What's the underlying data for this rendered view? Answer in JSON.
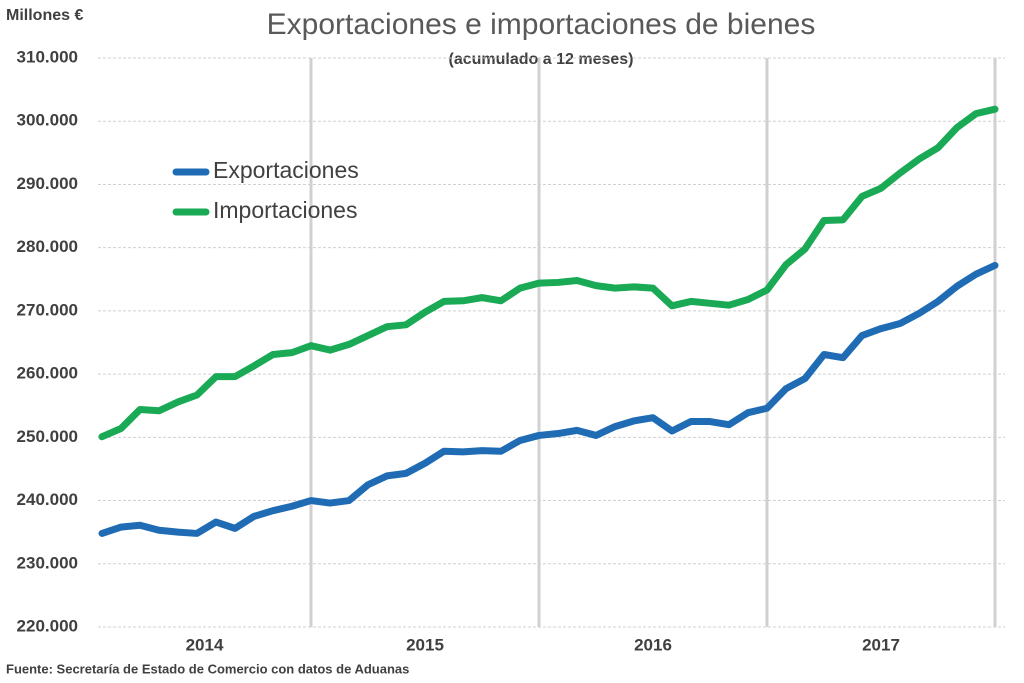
{
  "chart_data": {
    "type": "line",
    "title": "Exportaciones e importaciones de bienes",
    "subtitle": "(acumulado  a 12 meses)",
    "y_axis_label": "Millones €",
    "source": "Fuente: Secretaría de Estado de Comercio con datos de Aduanas",
    "categories": [
      "2014",
      null,
      null,
      null,
      null,
      null,
      null,
      null,
      null,
      null,
      null,
      null,
      "2015",
      null,
      null,
      null,
      null,
      null,
      null,
      null,
      null,
      null,
      null,
      null,
      "2016",
      null,
      null,
      null,
      null,
      null,
      null,
      null,
      null,
      null,
      null,
      null,
      "2017",
      null,
      null,
      null,
      null,
      null,
      null,
      null,
      null,
      null,
      null,
      null
    ],
    "series": [
      {
        "name": "Exportaciones",
        "color": "#1f6cb5",
        "values": [
          234800,
          235800,
          236100,
          235300,
          235000,
          234800,
          236600,
          235600,
          237500,
          238400,
          239100,
          240000,
          239600,
          240000,
          242500,
          243900,
          244300,
          245900,
          247800,
          247700,
          247900,
          247800,
          249500,
          250300,
          250600,
          251100,
          250300,
          251700,
          252600,
          253100,
          251000,
          252500,
          252500,
          252000,
          253900,
          254600,
          257700,
          259300,
          263100,
          262600,
          266100,
          267200,
          268000,
          269600,
          271500,
          273900,
          275800,
          277200
        ]
      },
      {
        "name": "Importaciones",
        "color": "#1aaa55",
        "values": [
          250100,
          251400,
          254400,
          254200,
          255600,
          256700,
          259600,
          259600,
          261300,
          263100,
          263400,
          264500,
          263800,
          264700,
          266100,
          267500,
          267800,
          269800,
          271500,
          271600,
          272100,
          271600,
          273600,
          274400,
          274500,
          274800,
          274000,
          273600,
          273800,
          273600,
          270800,
          271500,
          271200,
          270900,
          271800,
          273300,
          277300,
          279800,
          284300,
          284400,
          288100,
          289400,
          291800,
          294000,
          295800,
          299000,
          301200,
          301900
        ]
      }
    ],
    "ylim": [
      220000,
      310000
    ],
    "yticks": [
      {
        "value": 220000,
        "label": "220.000"
      },
      {
        "value": 230000,
        "label": "230.000"
      },
      {
        "value": 240000,
        "label": "240.000"
      },
      {
        "value": 250000,
        "label": "250.000"
      },
      {
        "value": 260000,
        "label": "260.000"
      },
      {
        "value": 270000,
        "label": "270.000"
      },
      {
        "value": 280000,
        "label": "280.000"
      },
      {
        "value": 290000,
        "label": "290.000"
      },
      {
        "value": 300000,
        "label": "300.000"
      },
      {
        "value": 310000,
        "label": "310.000"
      }
    ],
    "grid": true
  }
}
